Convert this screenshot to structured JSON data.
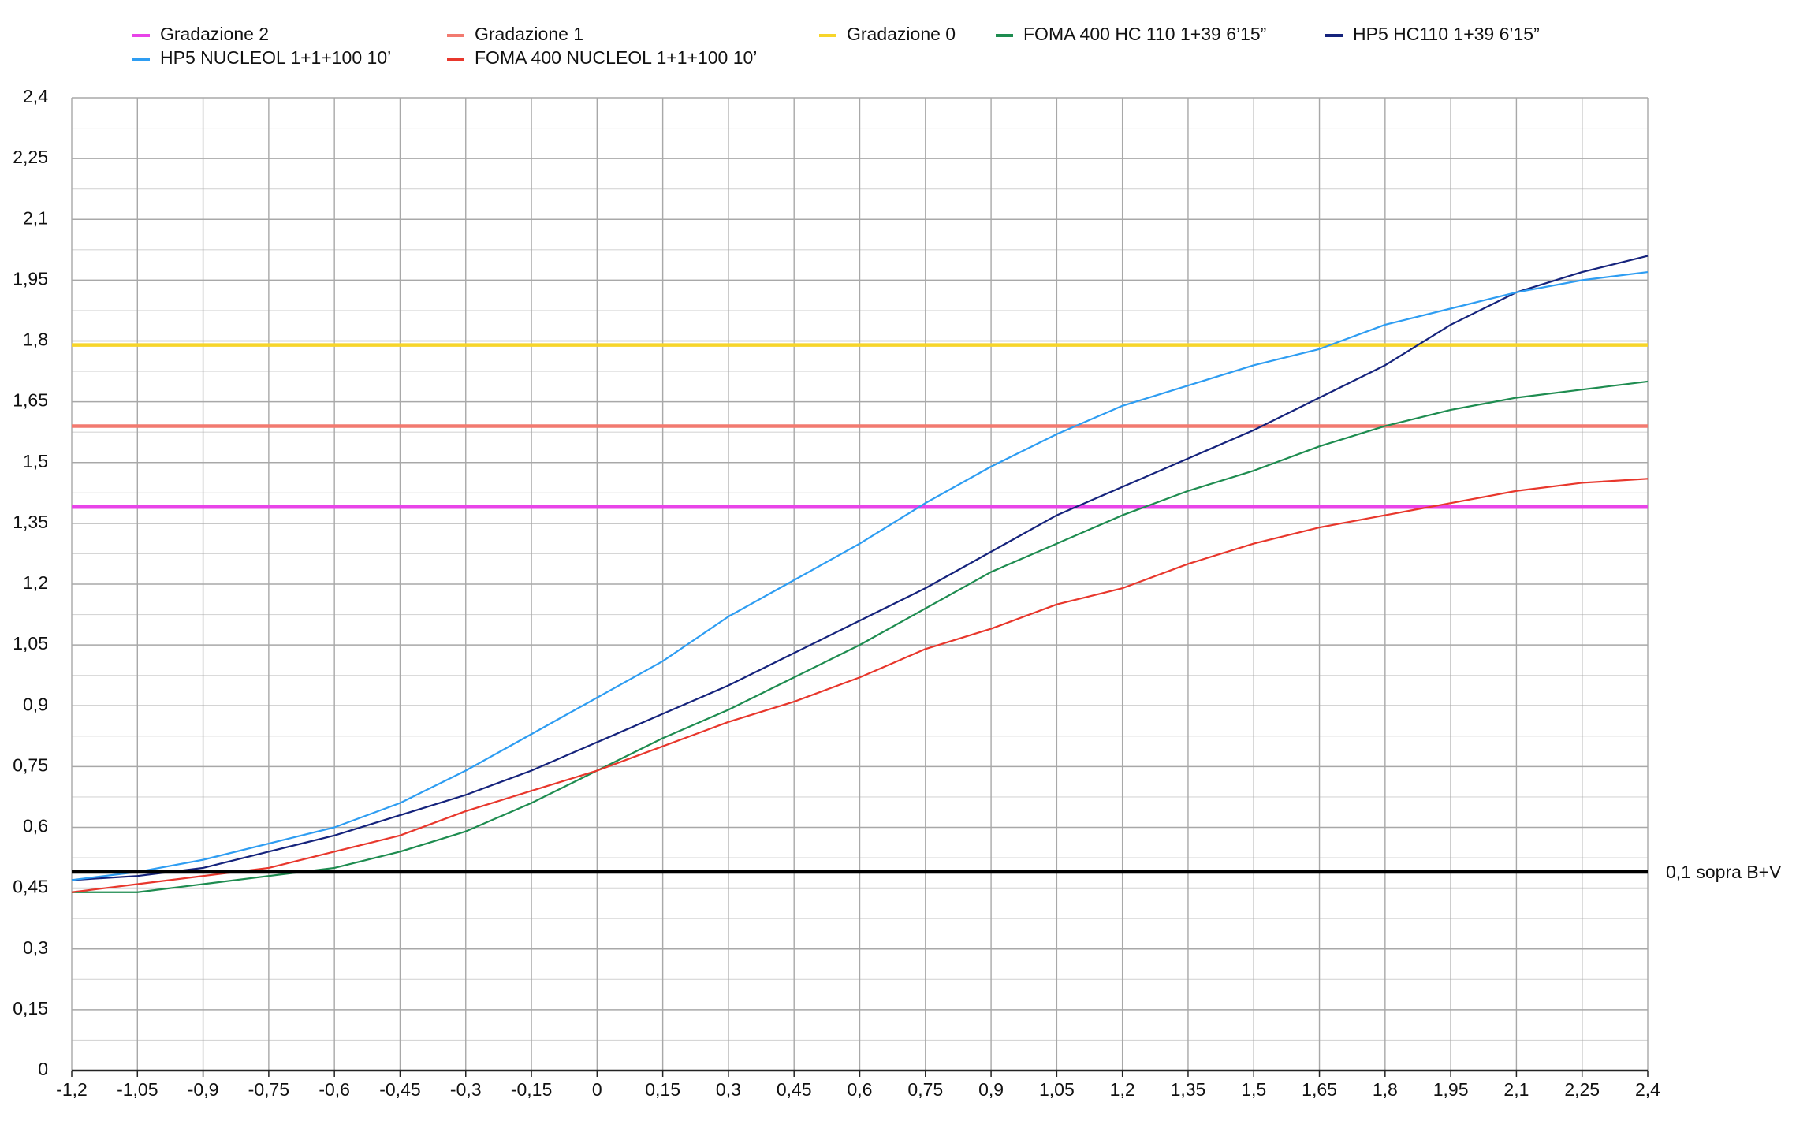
{
  "chart_data": {
    "type": "line",
    "x": [
      -1.2,
      -1.05,
      -0.9,
      -0.75,
      -0.6,
      -0.45,
      -0.3,
      -0.15,
      0,
      0.15,
      0.3,
      0.45,
      0.6,
      0.75,
      0.9,
      1.05,
      1.2,
      1.35,
      1.5,
      1.65,
      1.8,
      1.95,
      2.1,
      2.25,
      2.4
    ],
    "series": [
      {
        "name": "Gradazione 2",
        "color": "#e844e8",
        "width": 4.5,
        "values": [
          1.39,
          1.39,
          1.39,
          1.39,
          1.39,
          1.39,
          1.39,
          1.39,
          1.39,
          1.39,
          1.39,
          1.39,
          1.39,
          1.39,
          1.39,
          1.39,
          1.39,
          1.39,
          1.39,
          1.39,
          1.39,
          1.39,
          1.39,
          1.39,
          1.39
        ]
      },
      {
        "name": "Gradazione 1",
        "color": "#f27a70",
        "width": 4.5,
        "values": [
          1.59,
          1.59,
          1.59,
          1.59,
          1.59,
          1.59,
          1.59,
          1.59,
          1.59,
          1.59,
          1.59,
          1.59,
          1.59,
          1.59,
          1.59,
          1.59,
          1.59,
          1.59,
          1.59,
          1.59,
          1.59,
          1.59,
          1.59,
          1.59,
          1.59
        ]
      },
      {
        "name": "Gradazione 0",
        "color": "#f7d52a",
        "width": 4.5,
        "values": [
          1.79,
          1.79,
          1.79,
          1.79,
          1.79,
          1.79,
          1.79,
          1.79,
          1.79,
          1.79,
          1.79,
          1.79,
          1.79,
          1.79,
          1.79,
          1.79,
          1.79,
          1.79,
          1.79,
          1.79,
          1.79,
          1.79,
          1.79,
          1.79,
          1.79
        ]
      },
      {
        "name": "FOMA 400 HC 110 1+39 6’15”",
        "color": "#1e8c50",
        "width": 2.2,
        "values": [
          0.44,
          0.44,
          0.46,
          0.48,
          0.5,
          0.54,
          0.59,
          0.66,
          0.74,
          0.82,
          0.89,
          0.97,
          1.05,
          1.14,
          1.23,
          1.3,
          1.37,
          1.43,
          1.48,
          1.54,
          1.59,
          1.63,
          1.66,
          1.68,
          1.7
        ]
      },
      {
        "name": "HP5 HC110 1+39 6’15”",
        "color": "#15237c",
        "width": 2.2,
        "values": [
          0.47,
          0.48,
          0.5,
          0.54,
          0.58,
          0.63,
          0.68,
          0.74,
          0.81,
          0.88,
          0.95,
          1.03,
          1.11,
          1.19,
          1.28,
          1.37,
          1.44,
          1.51,
          1.58,
          1.66,
          1.74,
          1.84,
          1.92,
          1.97,
          2.01
        ]
      },
      {
        "name": "HP5 NUCLEOL  1+1+100 10’",
        "color": "#2e9df2",
        "width": 2.2,
        "values": [
          0.47,
          0.49,
          0.52,
          0.56,
          0.6,
          0.66,
          0.74,
          0.83,
          0.92,
          1.01,
          1.12,
          1.21,
          1.3,
          1.4,
          1.49,
          1.57,
          1.64,
          1.69,
          1.74,
          1.78,
          1.84,
          1.88,
          1.92,
          1.95,
          1.97
        ]
      },
      {
        "name": "FOMA 400 NUCLEOL  1+1+100 10’",
        "color": "#e8372c",
        "width": 2.2,
        "values": [
          0.44,
          0.46,
          0.48,
          0.5,
          0.54,
          0.58,
          0.64,
          0.69,
          0.74,
          0.8,
          0.86,
          0.91,
          0.97,
          1.04,
          1.09,
          1.15,
          1.19,
          1.25,
          1.3,
          1.34,
          1.37,
          1.4,
          1.43,
          1.45,
          1.46
        ]
      }
    ],
    "reference_line": {
      "label": "0,1 sopra B+V",
      "value": 0.49,
      "color": "#000000"
    },
    "xlim": [
      -1.2,
      2.4
    ],
    "ylim": [
      0,
      2.4
    ],
    "xticks": [
      {
        "value": -1.2,
        "label": "-1,2"
      },
      {
        "value": -1.05,
        "label": "-1,05"
      },
      {
        "value": -0.9,
        "label": "-0,9"
      },
      {
        "value": -0.75,
        "label": "-0,75"
      },
      {
        "value": -0.6,
        "label": "-0,6"
      },
      {
        "value": -0.45,
        "label": "-0,45"
      },
      {
        "value": -0.3,
        "label": "-0,3"
      },
      {
        "value": -0.15,
        "label": "-0,15"
      },
      0,
      {
        "value": 0.15,
        "label": "0,15"
      },
      {
        "value": 0.3,
        "label": "0,3"
      },
      {
        "value": 0.45,
        "label": "0,45"
      },
      {
        "value": 0.6,
        "label": "0,6"
      },
      {
        "value": 0.75,
        "label": "0,75"
      },
      {
        "value": 0.9,
        "label": "0,9"
      },
      {
        "value": 1.05,
        "label": "1,05"
      },
      {
        "value": 1.2,
        "label": "1,2"
      },
      {
        "value": 1.35,
        "label": "1,35"
      },
      {
        "value": 1.5,
        "label": "1,5"
      },
      {
        "value": 1.65,
        "label": "1,65"
      },
      {
        "value": 1.8,
        "label": "1,8"
      },
      {
        "value": 1.95,
        "label": "1,95"
      },
      {
        "value": 2.1,
        "label": "2,1"
      },
      {
        "value": 2.25,
        "label": "2,25"
      },
      {
        "value": 2.4,
        "label": "2,4"
      }
    ],
    "yticks": [
      0,
      {
        "value": 0.15,
        "label": "0,15"
      },
      {
        "value": 0.3,
        "label": "0,3"
      },
      {
        "value": 0.45,
        "label": "0,45"
      },
      {
        "value": 0.6,
        "label": "0,6"
      },
      {
        "value": 0.75,
        "label": "0,75"
      },
      {
        "value": 0.9,
        "label": "0,9"
      },
      {
        "value": 1.05,
        "label": "1,05"
      },
      {
        "value": 1.2,
        "label": "1,2"
      },
      {
        "value": 1.35,
        "label": "1,35"
      },
      {
        "value": 1.5,
        "label": "1,5"
      },
      {
        "value": 1.65,
        "label": "1,65"
      },
      {
        "value": 1.8,
        "label": "1,8"
      },
      {
        "value": 1.95,
        "label": "1,95"
      },
      {
        "value": 2.1,
        "label": "2,1"
      },
      {
        "value": 2.25,
        "label": "2,25"
      },
      {
        "value": 2.4,
        "label": "2,4"
      }
    ],
    "grid": true
  }
}
